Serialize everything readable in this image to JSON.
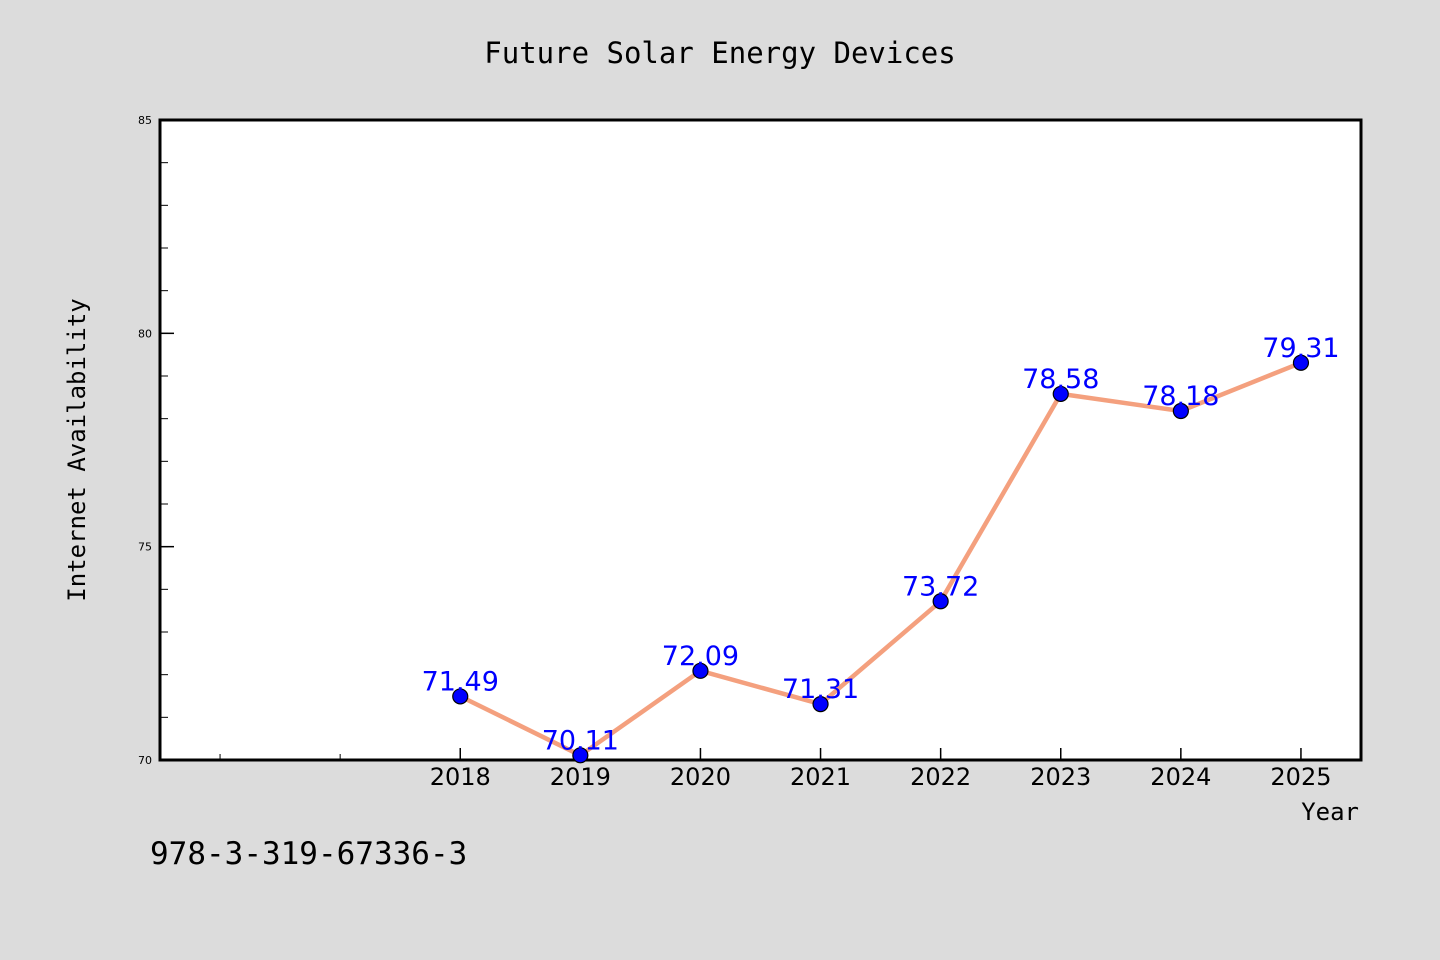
{
  "colors": {
    "background": "#dcdcdc",
    "plot_background": "#ffffff",
    "line": "#f4a07e",
    "marker": "#0000ff",
    "data_label": "#0000ff"
  },
  "footer": {
    "isbn": "978-3-319-67336-3"
  },
  "chart_data": {
    "type": "line",
    "title": "Future Solar Energy Devices",
    "xlabel": "Year",
    "ylabel": "Internet Availability",
    "categories": [
      "2018",
      "2019",
      "2020",
      "2021",
      "2022",
      "2023",
      "2024",
      "2025"
    ],
    "series": [
      {
        "values": [
          71.49,
          70.11,
          72.09,
          71.31,
          73.72,
          78.58,
          78.18,
          79.31
        ]
      }
    ],
    "data_labels": [
      "71.49",
      "70.11",
      "72.09",
      "71.31",
      "73.72",
      "78.58",
      "78.18",
      "79.31"
    ],
    "ylim": [
      70,
      85
    ],
    "yticks": [
      70,
      75,
      80,
      85
    ],
    "ytick_labels": [
      "70",
      "75",
      "80",
      "85"
    ],
    "grid": false,
    "legend": "none"
  }
}
